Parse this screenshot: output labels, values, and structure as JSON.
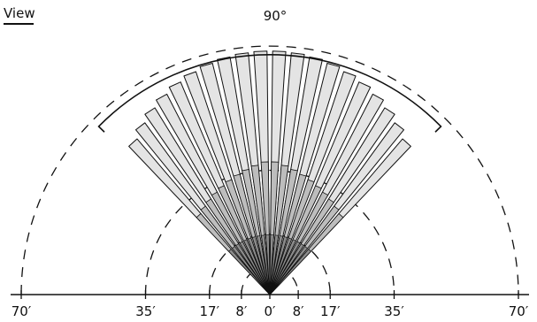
{
  "diagram": {
    "view_label": "View",
    "fov_label": "90°",
    "range_labels": [
      "70′",
      "35′",
      "17′",
      "8′",
      "0′",
      "8′",
      "17′",
      "35′",
      "70′"
    ],
    "range_values_ft": [
      -70,
      -35,
      -17,
      -8,
      0,
      8,
      17,
      35,
      70
    ],
    "max_range_ft": 70,
    "arc_ranges_ft": [
      8,
      17,
      35,
      70
    ],
    "fov_degrees": 90,
    "beam_count": 20,
    "colors": {
      "line": "#111111",
      "beam_fill": "#e4e4e4",
      "beam_dark": "#8c8c8c",
      "beam_mid": "#bdbdbd",
      "background": "#ffffff"
    }
  }
}
